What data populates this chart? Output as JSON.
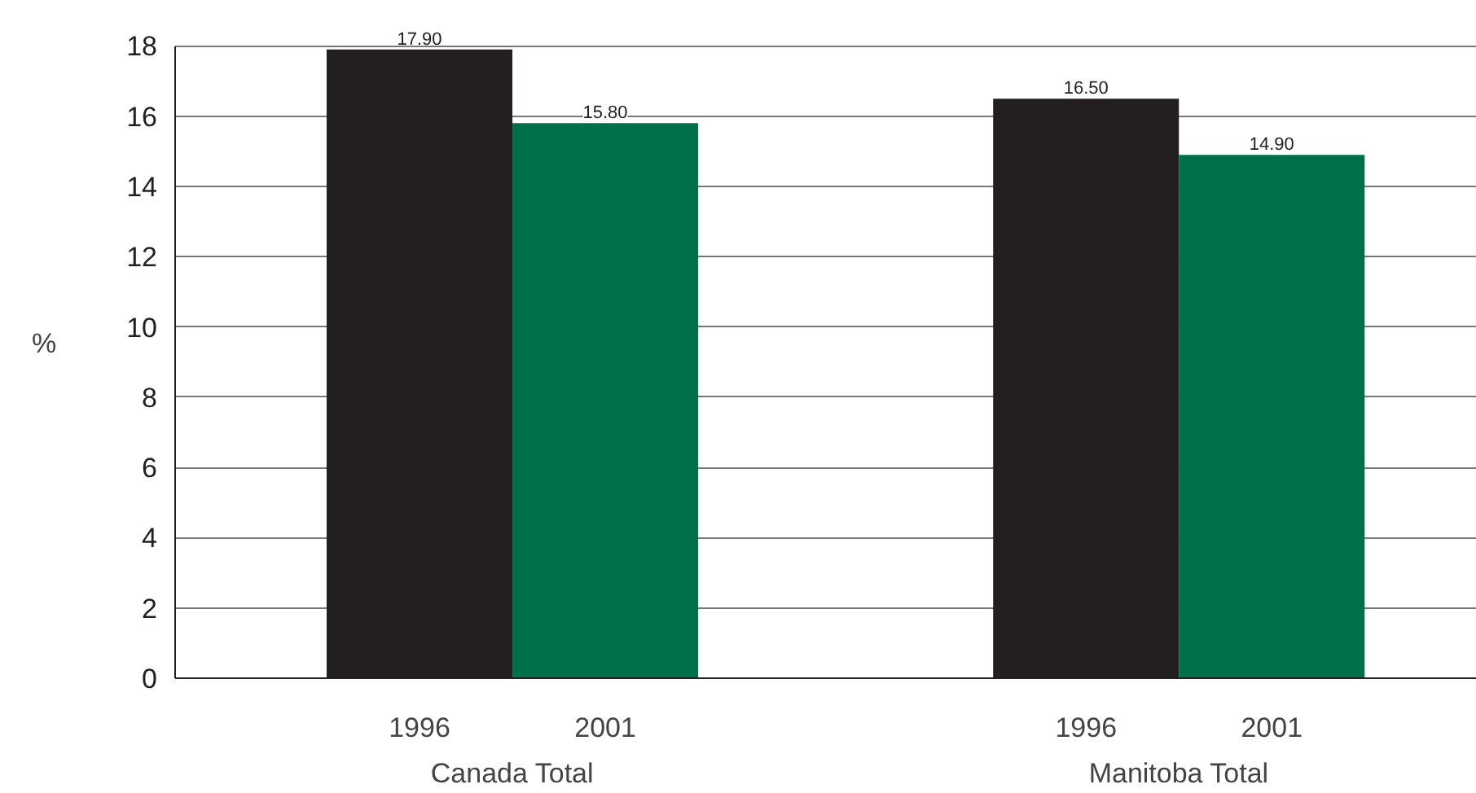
{
  "chart_data": {
    "type": "bar",
    "ylabel": "%",
    "categories": [
      "Canada Total",
      "Manitoba Total"
    ],
    "series": [
      {
        "name": "1996",
        "color": "#231f20",
        "values": [
          17.9,
          16.5
        ],
        "value_labels": [
          "17.90",
          "16.50"
        ]
      },
      {
        "name": "2001",
        "color": "#00704a",
        "values": [
          15.8,
          14.9
        ],
        "value_labels": [
          "15.80",
          "14.90"
        ]
      }
    ],
    "ylim": [
      0,
      18
    ],
    "yticks": [
      0,
      2,
      4,
      6,
      8,
      10,
      12,
      14,
      16,
      18
    ],
    "grid": "y",
    "legend": false
  }
}
